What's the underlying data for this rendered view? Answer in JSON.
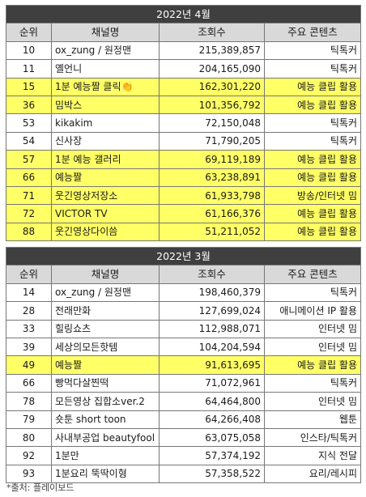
{
  "highlight_color": "#ffff66",
  "header_bar_color": "#3f3f3f",
  "column_header_color": "#d9d9d9",
  "tables": [
    {
      "title": "2022년 4월",
      "columns": [
        "순위",
        "채널명",
        "조회수",
        "주요 콘텐츠"
      ],
      "rows": [
        {
          "rank": "10",
          "channel": "ox_zung / 원정맨",
          "views": "215,389,857",
          "content": "틱톡커",
          "highlight": false
        },
        {
          "rank": "11",
          "channel": "옐언니",
          "views": "204,165,090",
          "content": "틱톡커",
          "highlight": false
        },
        {
          "rank": "15",
          "channel": "1분 예능짤 클릭👏",
          "views": "162,301,220",
          "content": "예능 클립 활용",
          "highlight": true
        },
        {
          "rank": "36",
          "channel": "밈박스",
          "views": "101,356,792",
          "content": "예능 클립 활용",
          "highlight": true
        },
        {
          "rank": "53",
          "channel": "kikakim",
          "views": "72,150,048",
          "content": "틱톡커",
          "highlight": false
        },
        {
          "rank": "54",
          "channel": "신사장",
          "views": "71,790,205",
          "content": "틱톡커",
          "highlight": false
        },
        {
          "rank": "57",
          "channel": "1분 예능 갤러리",
          "views": "69,119,189",
          "content": "예능 클립 활용",
          "highlight": true
        },
        {
          "rank": "66",
          "channel": "예능짤",
          "views": "63,238,891",
          "content": "예능 클립 활용",
          "highlight": true
        },
        {
          "rank": "71",
          "channel": "웃긴영상저장소",
          "views": "61,933,798",
          "content": "방송/인터넷 밈",
          "highlight": true
        },
        {
          "rank": "72",
          "channel": "VICTOR TV",
          "views": "61,166,376",
          "content": "예능 클립 활용",
          "highlight": true
        },
        {
          "rank": "88",
          "channel": "웃긴영상다이씀",
          "views": "51,211,052",
          "content": "예능 클립 활용",
          "highlight": true
        }
      ]
    },
    {
      "title": "2022년 3월",
      "columns": [
        "순위",
        "채널명",
        "조회수",
        "주요 콘텐츠"
      ],
      "rows": [
        {
          "rank": "14",
          "channel": "ox_zung / 원정맨",
          "views": "198,460,379",
          "content": "틱톡커",
          "highlight": false
        },
        {
          "rank": "28",
          "channel": "전래만화",
          "views": "127,699,024",
          "content": "애니메이션 IP 활용",
          "highlight": false
        },
        {
          "rank": "33",
          "channel": "힐링쇼츠",
          "views": "112,988,071",
          "content": "인터넷 밈",
          "highlight": false
        },
        {
          "rank": "39",
          "channel": "세상의모든핫템",
          "views": "104,204,594",
          "content": "인터넷 밈",
          "highlight": false
        },
        {
          "rank": "49",
          "channel": "예능짤",
          "views": "91,613,695",
          "content": "예능 클립 활용",
          "highlight": true
        },
        {
          "rank": "66",
          "channel": "빵먹다살찐떡",
          "views": "71,072,961",
          "content": "틱톡커",
          "highlight": false
        },
        {
          "rank": "78",
          "channel": "모든영상 집합소ver.2",
          "views": "64,464,800",
          "content": "인터넷 밈",
          "highlight": false
        },
        {
          "rank": "79",
          "channel": "숏툰 short toon",
          "views": "64,266,408",
          "content": "웹툰",
          "highlight": false
        },
        {
          "rank": "80",
          "channel": "사내부공업 beautyfool",
          "views": "63,075,058",
          "content": "인스타/틱톡커",
          "highlight": false
        },
        {
          "rank": "92",
          "channel": "1분만",
          "views": "57,374,192",
          "content": "지식 전달",
          "highlight": false
        },
        {
          "rank": "93",
          "channel": "1분요리 뚝딱이형",
          "views": "57,358,522",
          "content": "요리/레시피",
          "highlight": false
        }
      ]
    }
  ],
  "source": "*출처: 플레이보드"
}
